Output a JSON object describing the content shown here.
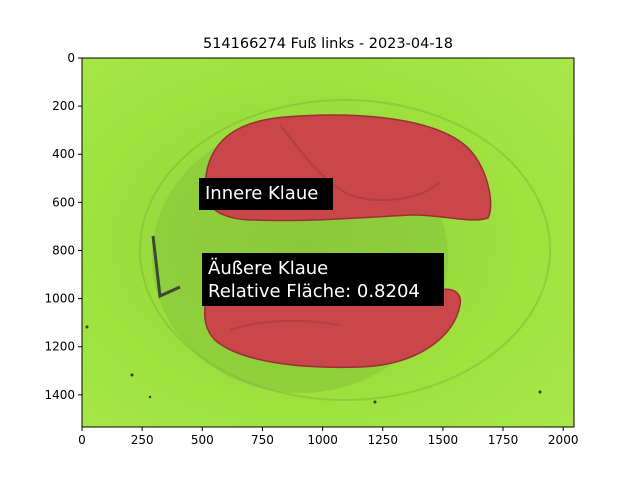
{
  "figure": {
    "title": "514166274 Fuß links - 2023-04-18"
  },
  "axes": {
    "x_ticks": [
      {
        "value": 0,
        "label": "0"
      },
      {
        "value": 250,
        "label": "250"
      },
      {
        "value": 500,
        "label": "500"
      },
      {
        "value": 750,
        "label": "750"
      },
      {
        "value": 1000,
        "label": "1000"
      },
      {
        "value": 1250,
        "label": "1250"
      },
      {
        "value": 1500,
        "label": "1500"
      },
      {
        "value": 1750,
        "label": "1750"
      },
      {
        "value": 2000,
        "label": "2000"
      }
    ],
    "y_ticks": [
      {
        "value": 0,
        "label": "0"
      },
      {
        "value": 200,
        "label": "200"
      },
      {
        "value": 400,
        "label": "400"
      },
      {
        "value": 600,
        "label": "600"
      },
      {
        "value": 800,
        "label": "800"
      },
      {
        "value": 1000,
        "label": "1000"
      },
      {
        "value": 1200,
        "label": "1200"
      },
      {
        "value": 1400,
        "label": "1400"
      }
    ]
  },
  "annotations": {
    "inner_claw": "Innere Klaue",
    "outer_claw_line1": "Äußere Klaue",
    "outer_claw_line2": "Relative Fläche: 0.8204"
  },
  "colors": {
    "background": "#9fe23e",
    "segmentation_overlay": "#d65a5a",
    "label_box": "#000000",
    "label_text": "#ffffff"
  }
}
